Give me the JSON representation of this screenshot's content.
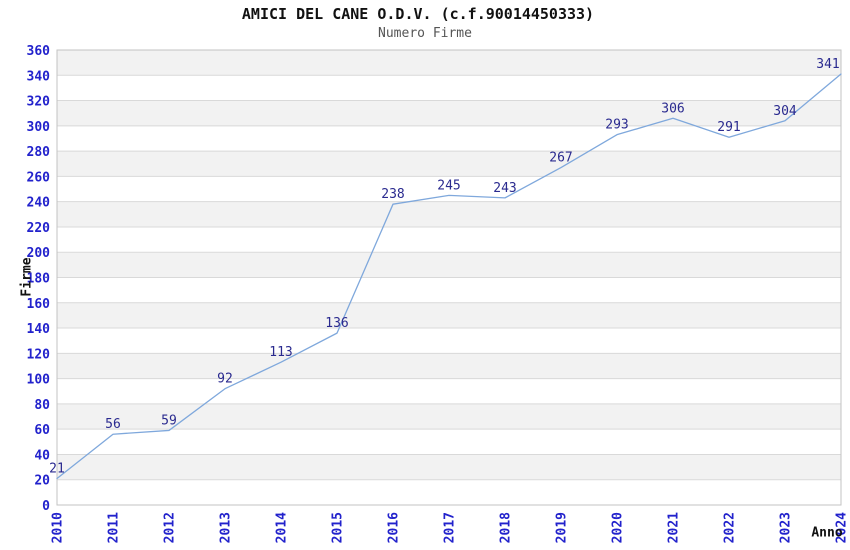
{
  "chart_data": {
    "type": "line",
    "title": "AMICI DEL CANE O.D.V. (c.f.90014450333)",
    "subtitle": "Numero Firme",
    "xlabel": "Anno",
    "ylabel": "Firme",
    "categories": [
      "2010",
      "2011",
      "2012",
      "2013",
      "2014",
      "2015",
      "2016",
      "2017",
      "2018",
      "2019",
      "2020",
      "2021",
      "2022",
      "2023",
      "2024"
    ],
    "values": [
      21,
      56,
      59,
      92,
      113,
      136,
      238,
      245,
      243,
      267,
      293,
      306,
      291,
      304,
      341
    ],
    "ylim": [
      0,
      360
    ],
    "ytick_step": 20,
    "grid": "horizontal-alternating-bands",
    "legend_position": "none",
    "show_point_labels": true,
    "colors": {
      "line": "#7fa8dc",
      "axis_tick_label": "#2222cc",
      "point_label": "#2a2a8f",
      "band_fill": "#f2f2f2",
      "band_fill_alt": "#ffffff",
      "gridline": "#d9d9d9",
      "plot_border": "#c3c3c3",
      "title": "#111111",
      "subtitle": "#555555",
      "axis_title": "#111111",
      "background": "#ffffff"
    }
  }
}
